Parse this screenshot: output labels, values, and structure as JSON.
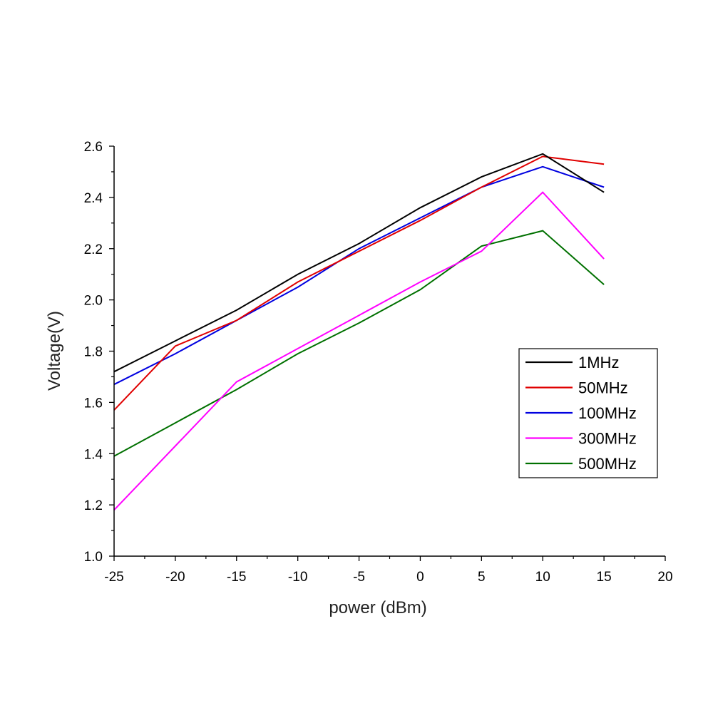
{
  "chart_data": {
    "type": "line",
    "title": "",
    "xlabel": "power (dBm)",
    "ylabel": "Voltage(V)",
    "xlim": [
      -25,
      20
    ],
    "ylim": [
      1.0,
      2.6
    ],
    "x_ticks": [
      "-25",
      "-20",
      "-15",
      "-10",
      "-5",
      "0",
      "5",
      "10",
      "15",
      "20"
    ],
    "y_ticks": [
      "1.0",
      "1.2",
      "1.4",
      "1.6",
      "1.8",
      "2.0",
      "2.2",
      "2.4",
      "2.6"
    ],
    "grid": false,
    "legend_position": "right",
    "x": [
      -25,
      -20,
      -15,
      -10,
      -5,
      0,
      5,
      10,
      15
    ],
    "series": [
      {
        "name": "1MHz",
        "color": "#000000",
        "values": [
          1.72,
          1.84,
          1.96,
          2.1,
          2.22,
          2.36,
          2.48,
          2.57,
          2.42
        ]
      },
      {
        "name": "50MHz",
        "color": "#e00000",
        "values": [
          1.57,
          1.82,
          1.92,
          2.07,
          2.19,
          2.31,
          2.44,
          2.56,
          2.53
        ]
      },
      {
        "name": "100MHz",
        "color": "#0000e0",
        "values": [
          1.67,
          1.79,
          1.92,
          2.05,
          2.2,
          2.32,
          2.44,
          2.52,
          2.44
        ]
      },
      {
        "name": "300MHz",
        "color": "#ff00ff",
        "values": [
          1.18,
          1.43,
          1.68,
          1.81,
          1.94,
          2.07,
          2.19,
          2.42,
          2.16
        ]
      },
      {
        "name": "500MHz",
        "color": "#007000",
        "values": [
          1.39,
          1.52,
          1.65,
          1.79,
          1.91,
          2.04,
          2.21,
          2.27,
          2.06
        ]
      }
    ]
  }
}
